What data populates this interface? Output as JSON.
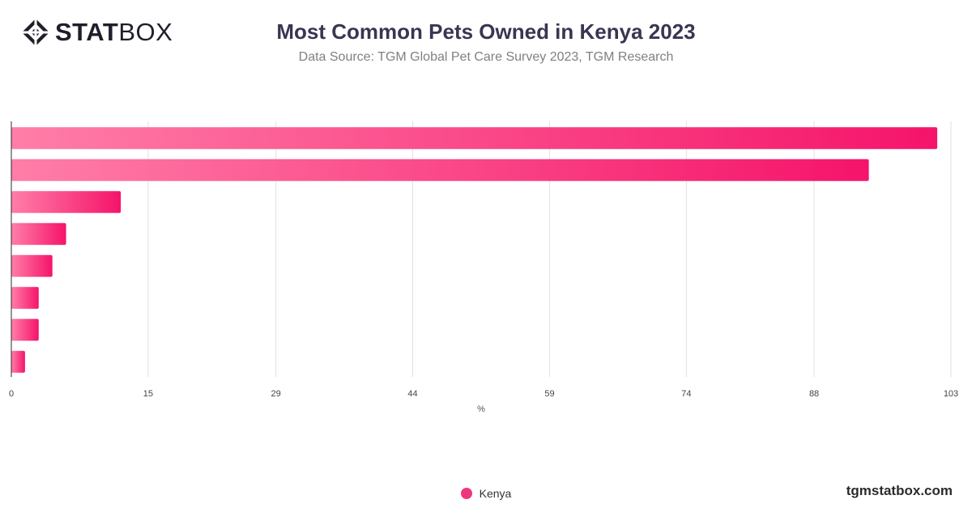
{
  "brand": {
    "logo_bold": "STAT",
    "logo_light": "BOX",
    "site": "tgmstatbox.com"
  },
  "colors": {
    "bar_start": "#ff7ea8",
    "bar_end": "#f5146a",
    "grid": "#e2e2e2",
    "axis": "#2b2b2b",
    "legend_dot": "#f0357f"
  },
  "chart_data": {
    "type": "bar",
    "orientation": "horizontal",
    "title": "Most Common Pets Owned in Kenya 2023",
    "subtitle": "Data Source: TGM Global Pet Care Survey 2023, TGM Research",
    "xlabel": "%",
    "ylabel": "",
    "xlim": [
      0,
      103
    ],
    "x_ticks": [
      0,
      15,
      29,
      44,
      59,
      74,
      88,
      103
    ],
    "grid": true,
    "legend_position": "bottom",
    "series": [
      {
        "name": "Kenya",
        "values": [
          101.5,
          94,
          12,
          6,
          4.5,
          3,
          3,
          1.5
        ]
      }
    ]
  }
}
